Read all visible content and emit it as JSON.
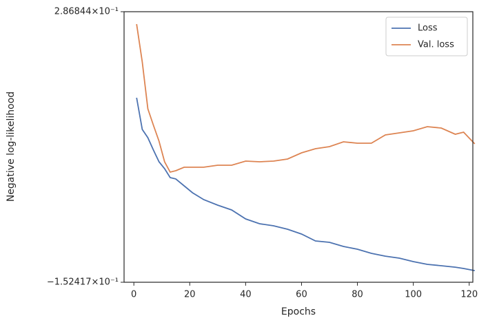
{
  "chart_data": {
    "type": "line",
    "xlabel": "Epochs",
    "ylabel": "Negative log-likelihood",
    "x": [
      1,
      3,
      5,
      7,
      9,
      11,
      13,
      15,
      18,
      21,
      25,
      30,
      35,
      40,
      45,
      50,
      55,
      60,
      65,
      70,
      75,
      80,
      85,
      90,
      95,
      100,
      105,
      110,
      115,
      118,
      122
    ],
    "series": [
      {
        "name": "Loss",
        "color": "#4c72b0",
        "values": [
          0.1471,
          0.0957,
          0.0823,
          0.0622,
          0.0432,
          0.032,
          0.0175,
          0.0153,
          0.0041,
          -0.0071,
          -0.0183,
          -0.0272,
          -0.0351,
          -0.0496,
          -0.0574,
          -0.0608,
          -0.0664,
          -0.0742,
          -0.0854,
          -0.0876,
          -0.0943,
          -0.0988,
          -0.1055,
          -0.11,
          -0.1133,
          -0.1189,
          -0.1234,
          -0.1256,
          -0.1279,
          -0.1301,
          -0.1335
        ]
      },
      {
        "name": "Val. loss",
        "color": "#dd8452",
        "values": [
          0.2667,
          0.2053,
          0.1292,
          0.1024,
          0.0767,
          0.0432,
          0.0264,
          0.0287,
          0.0343,
          0.0343,
          0.0343,
          0.0376,
          0.0376,
          0.0443,
          0.0432,
          0.0443,
          0.0477,
          0.0577,
          0.0644,
          0.0678,
          0.0756,
          0.0734,
          0.0734,
          0.0868,
          0.0901,
          0.0935,
          0.1002,
          0.098,
          0.0879,
          0.0913,
          0.0722
        ]
      }
    ],
    "xlim": [
      -3.5,
      121.3
    ],
    "xticks": [
      0,
      20,
      40,
      60,
      80,
      100,
      120
    ],
    "ylim": [
      -0.152417,
      0.286844
    ],
    "yticks": [
      {
        "value": -0.152417,
        "label": "−1.52417×10⁻¹"
      },
      {
        "value": 0.286844,
        "label": "2.86844×10⁻¹"
      }
    ],
    "legend": "upper right"
  }
}
